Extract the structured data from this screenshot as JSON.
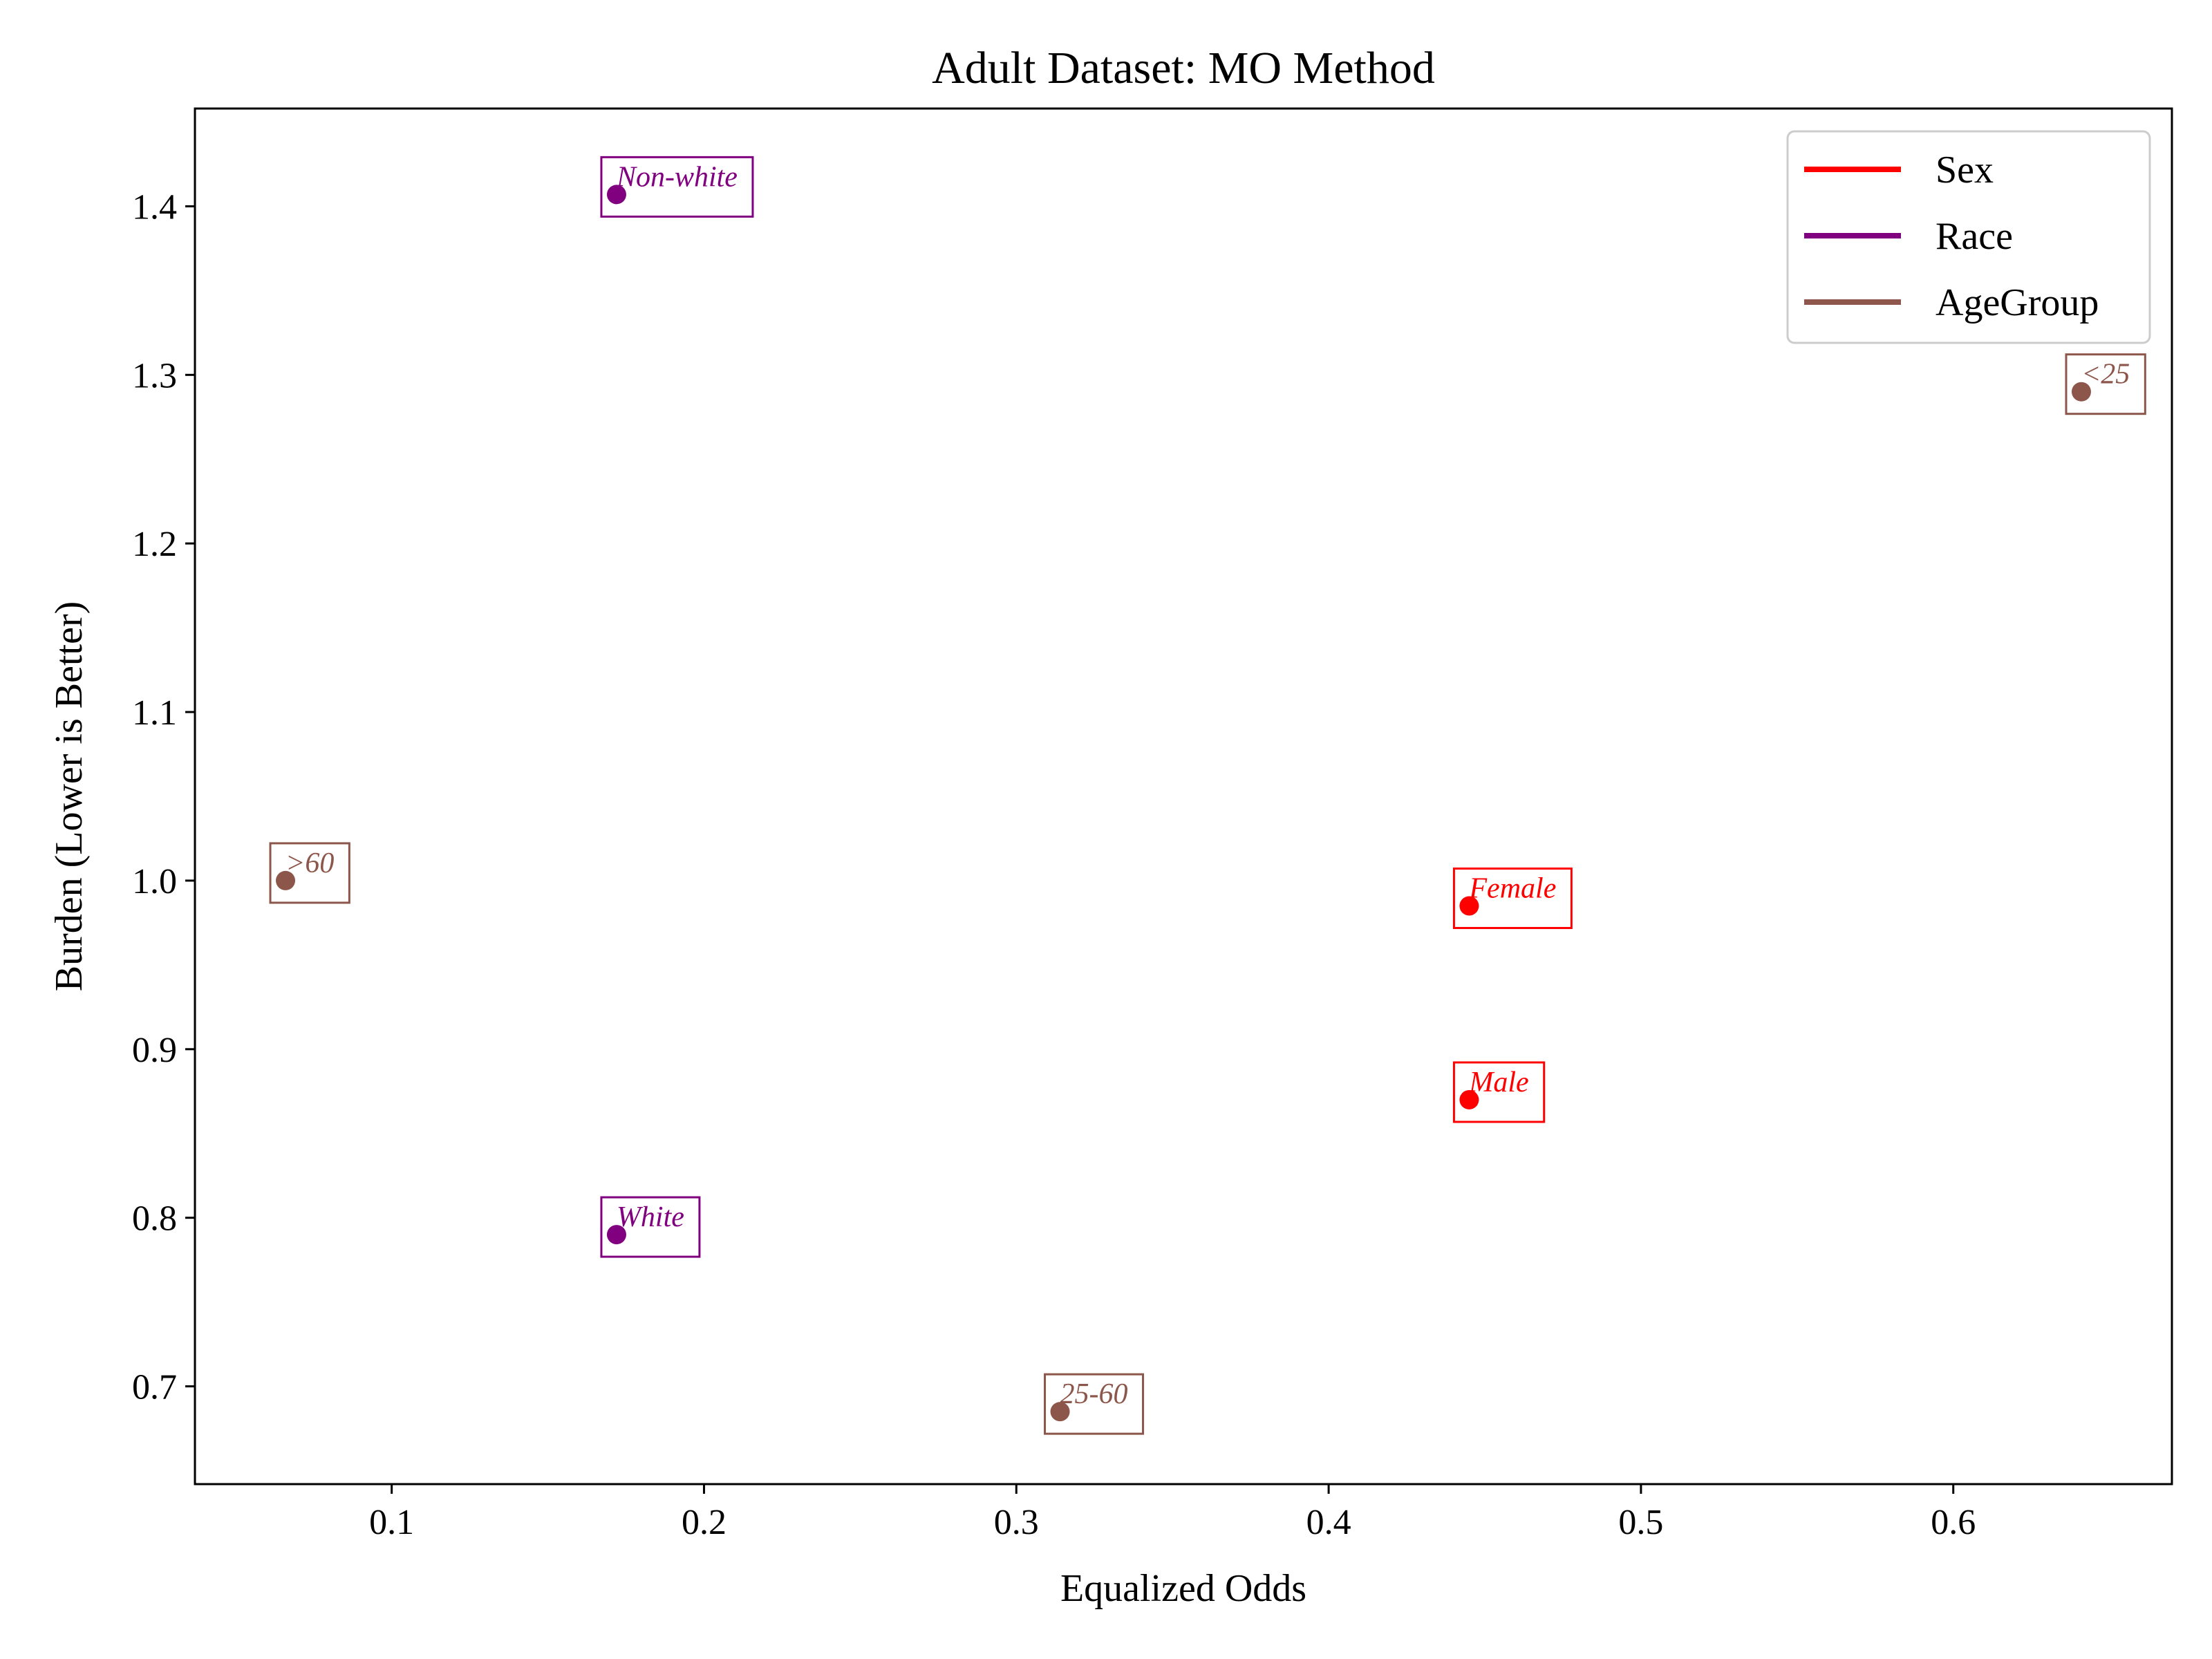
{
  "chart_data": {
    "type": "scatter",
    "title": "Adult Dataset: MO Method",
    "xlabel": "Equalized Odds",
    "ylabel": "Burden (Lower is Better)",
    "xlim": [
      0.037,
      0.67
    ],
    "ylim": [
      0.642,
      1.458
    ],
    "xticks": [
      "0.1",
      "0.2",
      "0.3",
      "0.4",
      "0.5",
      "0.6"
    ],
    "xtick_values": [
      0.1,
      0.2,
      0.3,
      0.4,
      0.5,
      0.6
    ],
    "yticks": [
      "0.7",
      "0.8",
      "0.9",
      "1.0",
      "1.1",
      "1.2",
      "1.3",
      "1.4"
    ],
    "ytick_values": [
      0.7,
      0.8,
      0.9,
      1.0,
      1.1,
      1.2,
      1.3,
      1.4
    ],
    "grid": false,
    "legend_position": "top-right",
    "series": [
      {
        "name": "Sex",
        "color": "#ff0000",
        "points": [
          {
            "label": "Female",
            "x": 0.445,
            "y": 0.985
          },
          {
            "label": "Male",
            "x": 0.445,
            "y": 0.87
          }
        ]
      },
      {
        "name": "Race",
        "color": "#800080",
        "points": [
          {
            "label": "Non-white",
            "x": 0.172,
            "y": 1.407
          },
          {
            "label": "White",
            "x": 0.172,
            "y": 0.79
          }
        ]
      },
      {
        "name": "AgeGroup",
        "color": "#8c564b",
        "points": [
          {
            "label": "<25",
            "x": 0.641,
            "y": 1.29
          },
          {
            "label": ">60",
            "x": 0.066,
            "y": 1.0
          },
          {
            "label": "25-60",
            "x": 0.314,
            "y": 0.685
          }
        ]
      }
    ]
  }
}
